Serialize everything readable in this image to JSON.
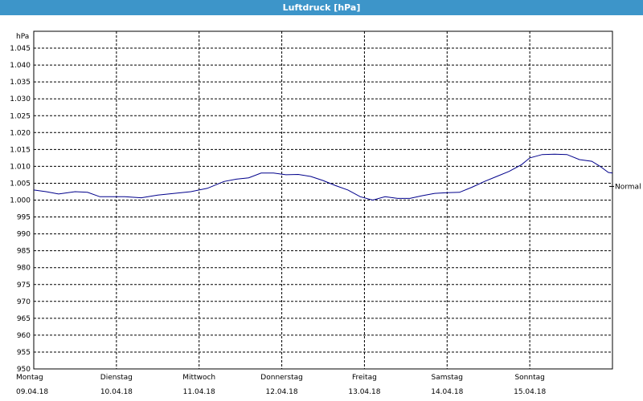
{
  "window": {
    "title": "Luftdruck [hPa]"
  },
  "chart_data": {
    "type": "line",
    "title": "Luftdruck [hPa]",
    "ylabel": "hPa",
    "ylim": [
      950,
      1050
    ],
    "yticks": [
      950,
      955,
      960,
      965,
      970,
      975,
      980,
      985,
      990,
      995,
      1000,
      1005,
      1010,
      1015,
      1020,
      1025,
      1030,
      1035,
      1040,
      1045
    ],
    "ytick_labels": [
      "950",
      "955",
      "960",
      "965",
      "970",
      "975",
      "980",
      "985",
      "990",
      "995",
      "1.000",
      "1.005",
      "1.010",
      "1.015",
      "1.020",
      "1.025",
      "1.030",
      "1.035",
      "1.040",
      "1.045"
    ],
    "xlim": [
      0,
      7
    ],
    "x_categories": [
      {
        "day": "Montag",
        "date": "09.04.18"
      },
      {
        "day": "Dienstag",
        "date": "10.04.18"
      },
      {
        "day": "Mittwoch",
        "date": "11.04.18"
      },
      {
        "day": "Donnerstag",
        "date": "12.04.18"
      },
      {
        "day": "Freitag",
        "date": "13.04.18"
      },
      {
        "day": "Samstag",
        "date": "14.04.18"
      },
      {
        "day": "Sonntag",
        "date": "15.04.18"
      }
    ],
    "grid": true,
    "reference_line": {
      "label": "Normal",
      "value": 1005
    },
    "series": [
      {
        "color": "#00008b",
        "x": [
          0,
          0.15,
          0.3,
          0.5,
          0.65,
          0.8,
          0.95,
          1.1,
          1.3,
          1.5,
          1.7,
          1.9,
          2.1,
          2.3,
          2.45,
          2.6,
          2.75,
          2.9,
          3.05,
          3.2,
          3.35,
          3.5,
          3.65,
          3.8,
          3.95,
          4.1,
          4.25,
          4.4,
          4.55,
          4.7,
          4.85,
          5.0,
          5.15,
          5.3,
          5.45,
          5.6,
          5.75,
          5.9,
          6.0,
          6.15,
          6.3,
          6.45,
          6.6,
          6.75,
          6.85,
          6.95,
          7.0
        ],
        "y": [
          1003,
          1002.5,
          1001.8,
          1002.5,
          1002.3,
          1001,
          1001,
          1001,
          1000.7,
          1001.5,
          1002,
          1002.5,
          1003.5,
          1005.5,
          1006.2,
          1006.6,
          1008,
          1008,
          1007.5,
          1007.6,
          1007,
          1005.8,
          1004.3,
          1003,
          1001,
          1000,
          1001,
          1000.5,
          1000.5,
          1001.3,
          1002,
          1002.2,
          1002.3,
          1003.8,
          1005.5,
          1007,
          1008.5,
          1010.5,
          1012.5,
          1013.5,
          1013.6,
          1013.5,
          1012,
          1011.5,
          1010,
          1008.2,
          1008
        ]
      }
    ]
  }
}
